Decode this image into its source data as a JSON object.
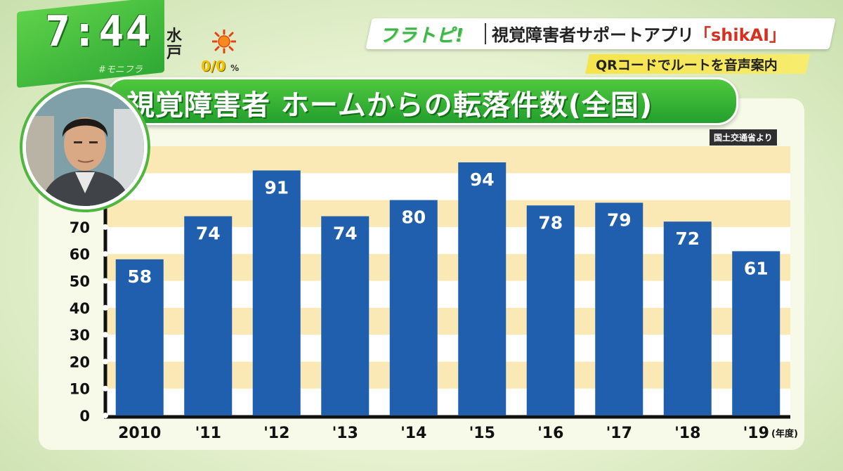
{
  "clock": "7:44",
  "hashtag": "#モニフラ",
  "weather": {
    "city": "水戸",
    "precip": "0/0",
    "precip_unit": "%",
    "icon": "sun-icon"
  },
  "brand": {
    "logo": "フラトピ!",
    "title_main": "視覚障害者サポートアプリ",
    "title_app": "「shikAI」"
  },
  "subtitle": "QRコードでルートを音声案内",
  "title": "視覚障害者 ホームからの転落件数(全国)",
  "source": "国土交通省より",
  "colors": {
    "bar": "#1f5fae",
    "bar_label": "#ffffff",
    "stripe": "#fbe9b5",
    "title_bg": "#2fa935"
  },
  "chart_data": {
    "type": "bar",
    "categories": [
      "2010",
      "'11",
      "'12",
      "'13",
      "'14",
      "'15",
      "'16",
      "'17",
      "'18",
      "'19"
    ],
    "values": [
      58,
      74,
      91,
      74,
      80,
      94,
      78,
      79,
      72,
      61
    ],
    "x_unit": "(年度)",
    "yticks": [
      0,
      10,
      20,
      30,
      40,
      50,
      60,
      70
    ],
    "ylim": [
      0,
      100
    ],
    "data_labels": true,
    "grid": "horizontal-bands"
  }
}
